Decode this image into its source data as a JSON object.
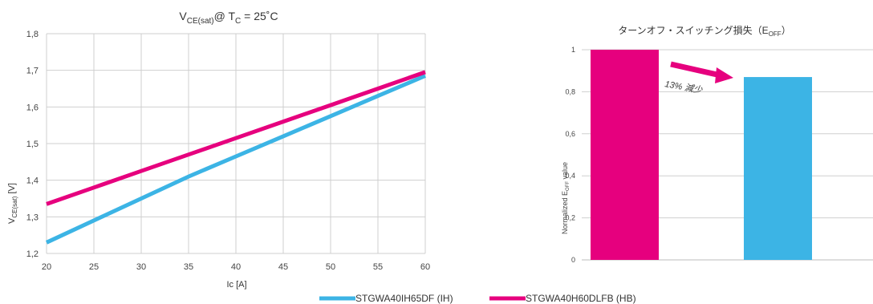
{
  "colors": {
    "ih": "#3cb4e5",
    "hb": "#e6007e",
    "grid": "#cfcfcf",
    "axis": "#bdbdbd"
  },
  "legend": [
    {
      "label": "STGWA40IH65DF (IH)",
      "color": "#3cb4e5"
    },
    {
      "label": "STGWA40H60DLFB (HB)",
      "color": "#e6007e"
    }
  ],
  "chart_data": [
    {
      "type": "line",
      "title": {
        "base": "V",
        "sub": "CE(sat)",
        "mid": "@ T",
        "sub2": "C",
        "tail": " = 25˚C"
      },
      "xlabel": "Ic [A]",
      "ylabel": {
        "base": "V",
        "sub": "CE(sat)",
        "tail": " [V]"
      },
      "xlim": [
        20,
        60
      ],
      "ylim": [
        1.2,
        1.8
      ],
      "xticks": [
        "20",
        "25",
        "30",
        "35",
        "40",
        "45",
        "50",
        "55",
        "60"
      ],
      "yticks": [
        "1,2",
        "1,3",
        "1,4",
        "1,5",
        "1,6",
        "1,7",
        "1,8"
      ],
      "grid": true,
      "series": [
        {
          "name": "STGWA40IH65DF (IH)",
          "color": "#3cb4e5",
          "x": [
            20,
            25,
            30,
            35,
            40,
            45,
            50,
            55,
            60
          ],
          "y": [
            1.23,
            1.29,
            1.35,
            1.41,
            1.465,
            1.52,
            1.575,
            1.63,
            1.685
          ]
        },
        {
          "name": "STGWA40H60DLFB (HB)",
          "color": "#e6007e",
          "x": [
            20,
            25,
            30,
            35,
            40,
            45,
            50,
            55,
            60
          ],
          "y": [
            1.335,
            1.38,
            1.425,
            1.47,
            1.515,
            1.56,
            1.605,
            1.65,
            1.695
          ]
        }
      ]
    },
    {
      "type": "bar",
      "title": {
        "base": "ターンオフ・スイッチング損失（E",
        "sub": "OFF",
        "tail": "）"
      },
      "ylabel": {
        "base": "Normalized E",
        "sub": "OFF",
        "tail": " value"
      },
      "ylim": [
        0,
        1
      ],
      "yticks": [
        "0",
        "0,2",
        "0,4",
        "0,6",
        "0,8",
        "1"
      ],
      "grid": true,
      "bars": [
        {
          "series": "STGWA40H60DLFB (HB)",
          "value": 1.0,
          "color": "#e6007e"
        },
        {
          "series": "STGWA40IH65DF (IH)",
          "value": 0.87,
          "color": "#3cb4e5"
        }
      ],
      "annotation": "13% 減少"
    }
  ]
}
